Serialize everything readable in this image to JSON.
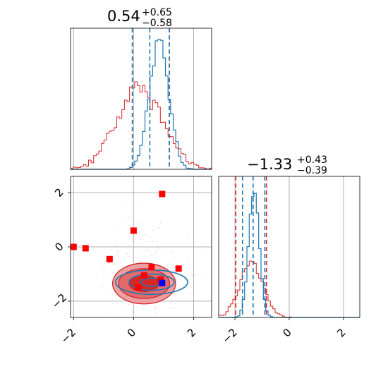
{
  "chart_data": {
    "type": "corner",
    "colors": {
      "posterior": "#1f77b4",
      "prior": "#d62728",
      "marker": "#ff0000",
      "truth": "#0000ff",
      "grid": "#b0b0b0",
      "contour_fill_dark": "#d62728",
      "contour_fill_light": "#eda0a2"
    },
    "panels": {
      "hist_x": {
        "title": {
          "main": "0.54",
          "sup": "+0.65",
          "sub": "−0.58"
        },
        "xlim": [
          -2.1,
          2.6
        ],
        "blue_quantiles": [
          0.54,
          -0.04,
          1.19
        ],
        "red_quantiles": [
          -0.04,
          1.19
        ],
        "grid_x": [
          -2,
          0,
          2
        ]
      },
      "hist_y": {
        "title": {
          "main": "−1.33",
          "sup": "+0.43",
          "sub": "−0.39"
        },
        "xlim": [
          -2.6,
          2.6
        ],
        "xticks": [
          "−2",
          "0",
          "2"
        ],
        "blue_quantiles": [
          -1.33,
          -1.72,
          -0.9
        ],
        "red_quantiles": [
          -1.97,
          -0.84
        ],
        "grid_x": [
          -2,
          0,
          2
        ]
      },
      "scatter": {
        "xlim": [
          -2.1,
          2.6
        ],
        "ylim": [
          -2.6,
          2.6
        ],
        "xticks": [
          "−2",
          "0",
          "2"
        ],
        "yticks": [
          "−2",
          "0",
          "2"
        ],
        "markers": [
          {
            "x": -2.0,
            "y": 0.0
          },
          {
            "x": -1.6,
            "y": -0.05
          },
          {
            "x": -0.8,
            "y": -0.45
          },
          {
            "x": 0.0,
            "y": 0.6
          },
          {
            "x": 0.95,
            "y": 1.95
          },
          {
            "x": 0.6,
            "y": -0.75
          },
          {
            "x": 1.5,
            "y": -0.8
          },
          {
            "x": 0.35,
            "y": -1.05
          },
          {
            "x": 0.15,
            "y": -1.5
          },
          {
            "x": 0.9,
            "y": -1.2
          }
        ],
        "truth": {
          "x": 0.95,
          "y": -1.33
        },
        "prior_contours": {
          "center": [
            0.35,
            -1.35
          ],
          "radii": [
            [
              0.5,
              0.3
            ],
            [
              0.85,
              0.55
            ],
            [
              1.05,
              0.75
            ]
          ]
        },
        "posterior_contours": {
          "center": [
            0.6,
            -1.3
          ],
          "radii": [
            [
              0.35,
              0.15
            ],
            [
              0.75,
              0.3
            ],
            [
              1.2,
              0.45
            ]
          ]
        }
      }
    }
  }
}
